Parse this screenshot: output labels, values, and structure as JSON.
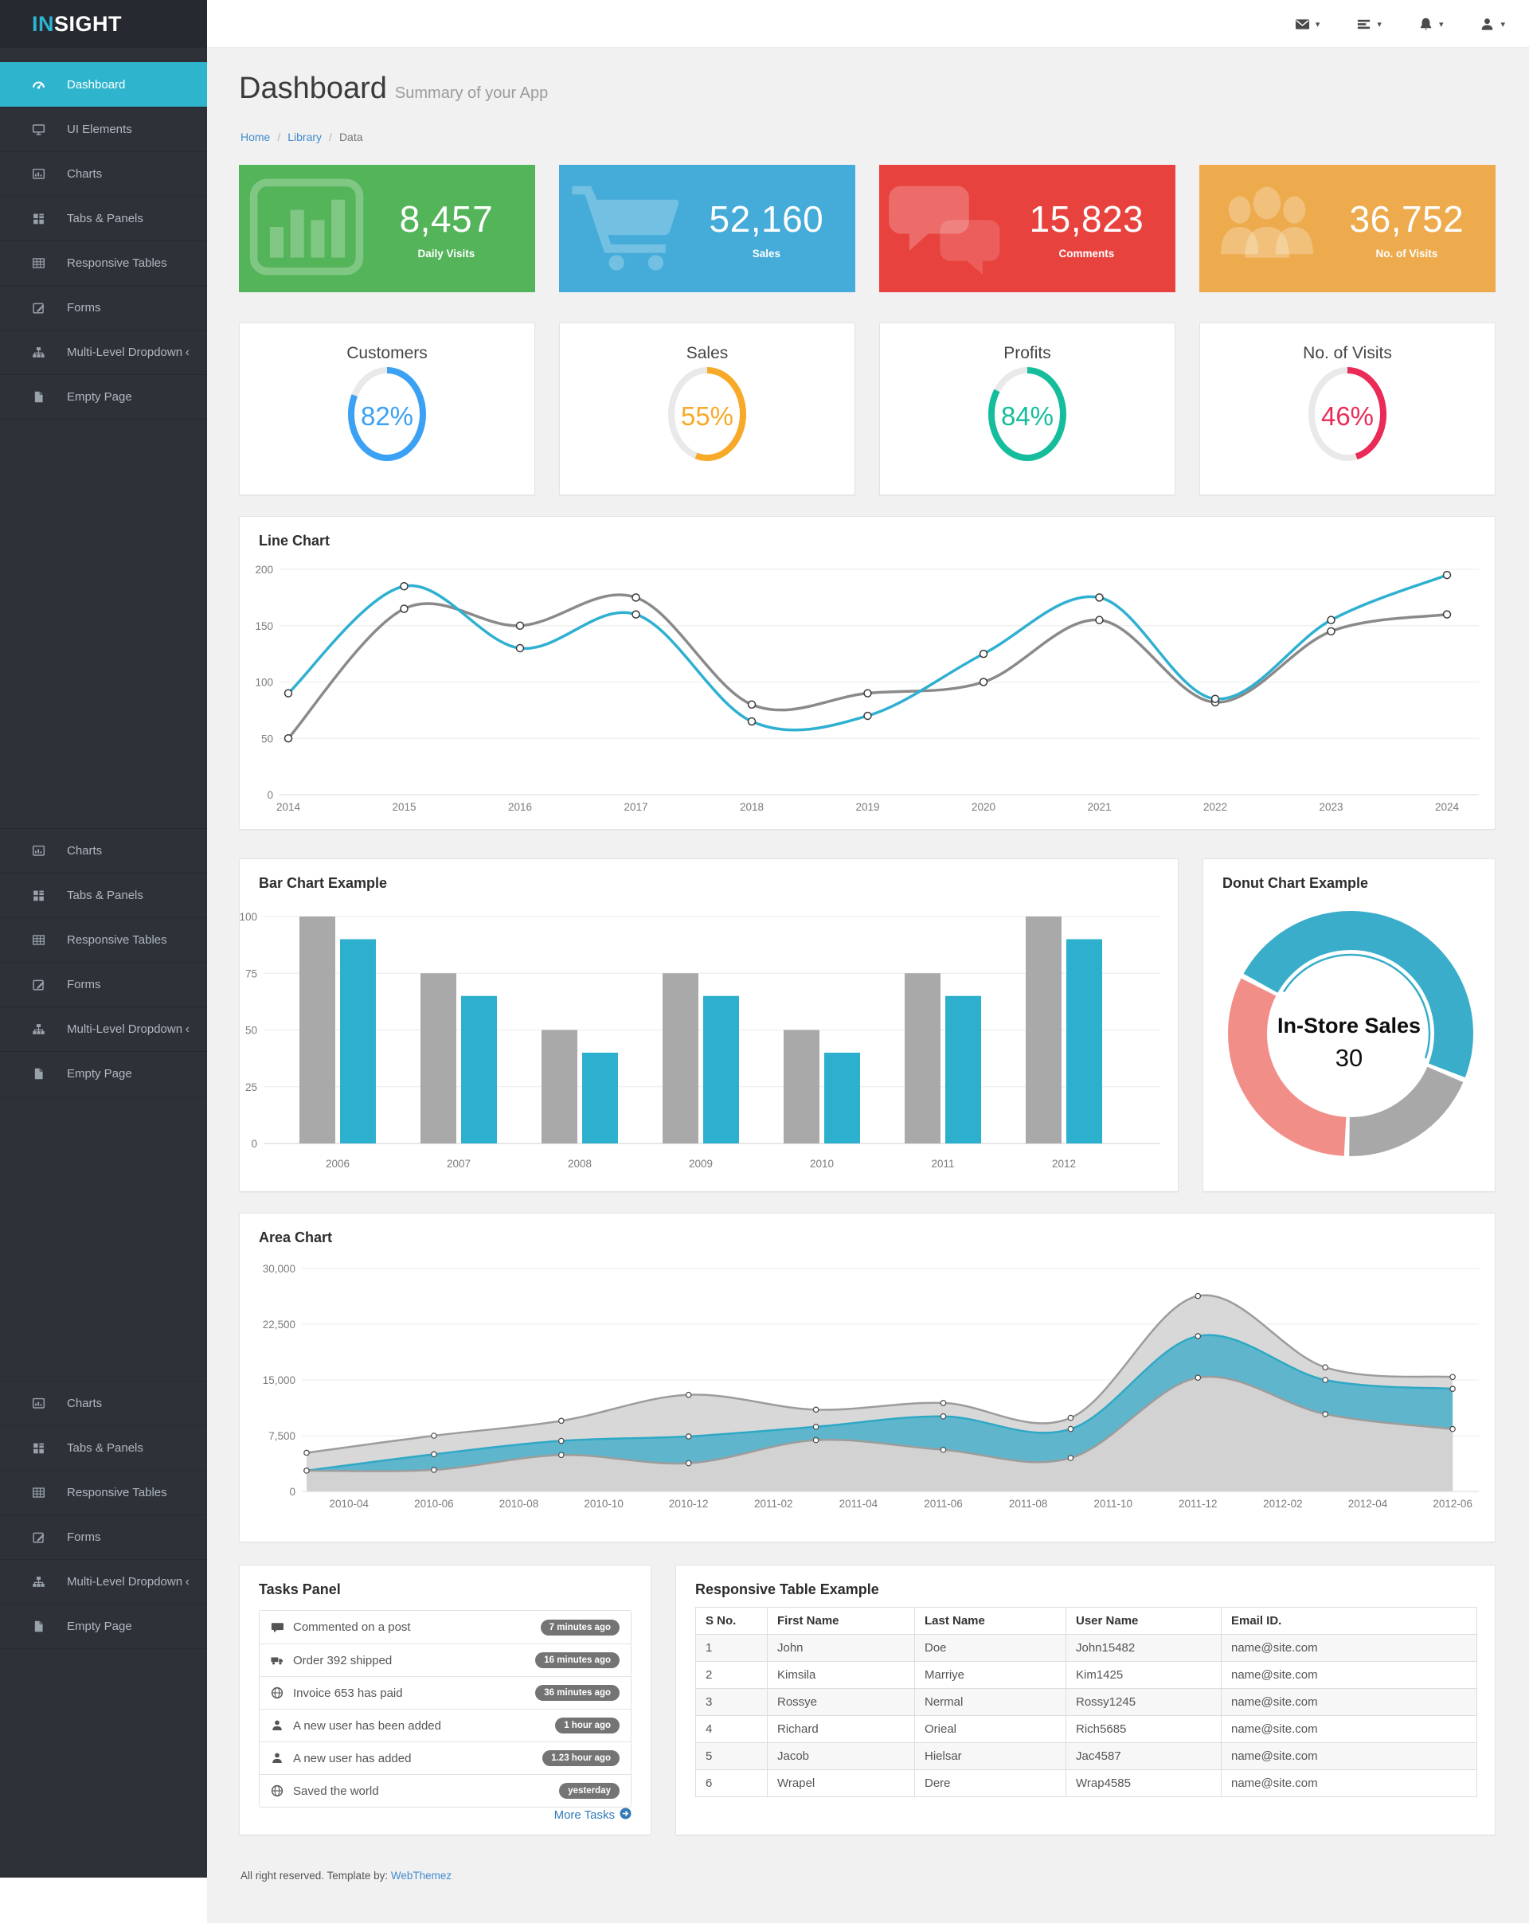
{
  "app": {
    "brand_accent": "IN",
    "brand_rest": "SIGHT"
  },
  "header": {
    "icons": [
      {
        "name": "mail"
      },
      {
        "name": "tasks"
      },
      {
        "name": "bell"
      },
      {
        "name": "user"
      }
    ]
  },
  "sidebar": {
    "groups": [
      {
        "items": [
          {
            "icon": "gauge",
            "label": "Dashboard",
            "active": true
          },
          {
            "icon": "desktop",
            "label": "UI Elements"
          },
          {
            "icon": "chart",
            "label": "Charts"
          },
          {
            "icon": "tabs",
            "label": "Tabs & Panels"
          },
          {
            "icon": "table",
            "label": "Responsive Tables"
          },
          {
            "icon": "forms",
            "label": "Forms"
          },
          {
            "icon": "sitemap",
            "label": "Multi-Level Dropdown",
            "chevron": "‹"
          },
          {
            "icon": "file",
            "label": "Empty Page"
          }
        ]
      },
      {
        "items": [
          {
            "icon": "chart",
            "label": "Charts"
          },
          {
            "icon": "tabs",
            "label": "Tabs & Panels"
          },
          {
            "icon": "table",
            "label": "Responsive Tables"
          },
          {
            "icon": "forms",
            "label": "Forms"
          },
          {
            "icon": "sitemap",
            "label": "Multi-Level Dropdown",
            "chevron": "‹"
          },
          {
            "icon": "file",
            "label": "Empty Page"
          }
        ]
      },
      {
        "items": [
          {
            "icon": "chart",
            "label": "Charts"
          },
          {
            "icon": "tabs",
            "label": "Tabs & Panels"
          },
          {
            "icon": "table",
            "label": "Responsive Tables"
          },
          {
            "icon": "forms",
            "label": "Forms"
          },
          {
            "icon": "sitemap",
            "label": "Multi-Level Dropdown",
            "chevron": "‹"
          },
          {
            "icon": "file",
            "label": "Empty Page"
          }
        ]
      }
    ]
  },
  "page": {
    "title": "Dashboard",
    "subtitle": "Summary of your App",
    "breadcrumb": [
      {
        "label": "Home",
        "link": true
      },
      {
        "label": "Library",
        "link": true
      },
      {
        "label": "Data",
        "link": false
      }
    ]
  },
  "stats": [
    {
      "value": "8,457",
      "label": "Daily Visits",
      "color": "#54b45a",
      "icon": "bars"
    },
    {
      "value": "52,160",
      "label": "Sales",
      "color": "#45abd8",
      "icon": "cart"
    },
    {
      "value": "15,823",
      "label": "Comments",
      "color": "#e8423e",
      "icon": "comment"
    },
    {
      "value": "36,752",
      "label": "No. of Visits",
      "color": "#edab4e",
      "icon": "users"
    }
  ],
  "gauges": [
    {
      "title": "Customers",
      "percent": 82,
      "color": "#3ba1f4"
    },
    {
      "title": "Sales",
      "percent": 55,
      "color": "#f7a928"
    },
    {
      "title": "Profits",
      "percent": 84,
      "color": "#16bd9d"
    },
    {
      "title": "No. of Visits",
      "percent": 46,
      "color": "#ea2b57"
    }
  ],
  "chart_data": [
    {
      "type": "line",
      "title": "Line Chart",
      "x": [
        "2014",
        "2015",
        "2016",
        "2017",
        "2018",
        "2019",
        "2020",
        "2021",
        "2022",
        "2023",
        "2024"
      ],
      "yticks": [
        0,
        50,
        100,
        150,
        200
      ],
      "ylim": [
        0,
        200
      ],
      "grid": true,
      "legend": "none",
      "series": [
        {
          "name": "series-gray",
          "color": "#8a8a8a",
          "values": [
            50,
            165,
            150,
            175,
            80,
            90,
            100,
            155,
            82,
            145,
            160
          ]
        },
        {
          "name": "series-blue",
          "color": "#2fb0d1",
          "values": [
            90,
            185,
            130,
            160,
            65,
            70,
            125,
            175,
            85,
            155,
            195
          ]
        }
      ]
    },
    {
      "type": "bar",
      "title": "Bar Chart Example",
      "categories": [
        "2006",
        "2007",
        "2008",
        "2009",
        "2010",
        "2011",
        "2012"
      ],
      "yticks": [
        0,
        25,
        50,
        75,
        100
      ],
      "ylim": [
        0,
        100
      ],
      "grid": true,
      "legend": "none",
      "series": [
        {
          "name": "series-gray",
          "color": "#a9a9a9",
          "values": [
            100,
            75,
            50,
            75,
            50,
            75,
            100
          ]
        },
        {
          "name": "series-blue",
          "color": "#2cb0ce",
          "values": [
            90,
            65,
            40,
            65,
            40,
            65,
            90
          ]
        }
      ]
    },
    {
      "type": "pie",
      "title": "Donut Chart Example",
      "center_label": "In-Store Sales",
      "center_value": "30",
      "start_angle_deg": -62,
      "segments": [
        {
          "label": "In-Store Sales",
          "value": 30,
          "color": "#39adca",
          "selected": true
        },
        {
          "label": "",
          "value": 12,
          "color": "#a8a8a8",
          "selected": false
        },
        {
          "label": "",
          "value": 20,
          "color": "#f28e88",
          "selected": false
        }
      ]
    },
    {
      "type": "area",
      "title": "Area Chart",
      "x": [
        "2010-03",
        "2010-06",
        "2010-09",
        "2010-12",
        "2011-03",
        "2011-06",
        "2011-09",
        "2011-12",
        "2012-03",
        "2012-06"
      ],
      "x_axis_labels": [
        "2010-04",
        "2010-06",
        "2010-08",
        "2010-10",
        "2010-12",
        "2011-02",
        "2011-04",
        "2011-06",
        "2011-08",
        "2011-10",
        "2011-12",
        "2012-02",
        "2012-04",
        "2012-06"
      ],
      "yticks": [
        0,
        7500,
        15000,
        22500,
        30000
      ],
      "ylim": [
        0,
        30000
      ],
      "grid": true,
      "legend": "none",
      "series": [
        {
          "name": "outer-gray",
          "fill": "#d8d8d8",
          "color": "#9c9c9c",
          "values": [
            5200,
            7500,
            9500,
            13000,
            11000,
            11900,
            9900,
            26300,
            16700,
            15400
          ]
        },
        {
          "name": "blue",
          "fill": "#5fb6cc",
          "color": "#2fa8c6",
          "values": [
            2800,
            5000,
            6800,
            7400,
            8700,
            10100,
            8400,
            20900,
            15000,
            13800
          ]
        },
        {
          "name": "inner-gray",
          "fill": "#d2d2d2",
          "color": "#9c9c9c",
          "values": [
            2800,
            2900,
            4900,
            3800,
            6900,
            5600,
            4500,
            15300,
            10400,
            8400
          ]
        }
      ]
    }
  ],
  "tasks": {
    "title": "Tasks Panel",
    "items": [
      {
        "icon": "comment",
        "text": "Commented on a post",
        "badge": "7 minutes ago"
      },
      {
        "icon": "truck",
        "text": "Order 392 shipped",
        "badge": "16 minutes ago"
      },
      {
        "icon": "globe",
        "text": "Invoice 653 has paid",
        "badge": "36 minutes ago"
      },
      {
        "icon": "user",
        "text": "A new user has been added",
        "badge": "1 hour ago"
      },
      {
        "icon": "user",
        "text": "A new user has added",
        "badge": "1.23 hour ago"
      },
      {
        "icon": "globe",
        "text": "Saved the world",
        "badge": "yesterday"
      }
    ],
    "more_label": "More Tasks"
  },
  "table": {
    "title": "Responsive Table Example",
    "headers": [
      "S No.",
      "First Name",
      "Last Name",
      "User Name",
      "Email ID."
    ],
    "rows": [
      [
        "1",
        "John",
        "Doe",
        "John15482",
        "name@site.com"
      ],
      [
        "2",
        "Kimsila",
        "Marriye",
        "Kim1425",
        "name@site.com"
      ],
      [
        "3",
        "Rossye",
        "Nermal",
        "Rossy1245",
        "name@site.com"
      ],
      [
        "4",
        "Richard",
        "Orieal",
        "Rich5685",
        "name@site.com"
      ],
      [
        "5",
        "Jacob",
        "Hielsar",
        "Jac4587",
        "name@site.com"
      ],
      [
        "6",
        "Wrapel",
        "Dere",
        "Wrap4585",
        "name@site.com"
      ]
    ]
  },
  "footer": {
    "text": "All right reserved. Template by:",
    "link_label": "WebThemez"
  }
}
